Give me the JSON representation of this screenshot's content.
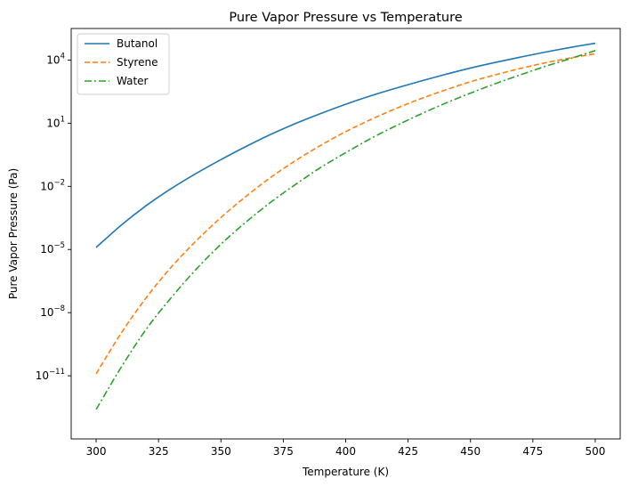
{
  "chart_data": {
    "type": "line",
    "title": "Pure Vapor Pressure vs Temperature",
    "xlabel": "Temperature (K)",
    "ylabel": "Pure Vapor Pressure (Pa)",
    "xlim": [
      290,
      510
    ],
    "ylim_log10": [
      -14,
      5.5
    ],
    "yscale": "log",
    "grid": false,
    "legend_position": "top-left",
    "x_ticks": [
      300,
      325,
      350,
      375,
      400,
      425,
      450,
      475,
      500
    ],
    "x_tick_labels": [
      "300",
      "325",
      "350",
      "375",
      "400",
      "425",
      "450",
      "475",
      "500"
    ],
    "y_ticks_exp": [
      4,
      1,
      -2,
      -5,
      -8,
      -11
    ],
    "y_tick_base": "10",
    "series": [
      {
        "name": "Butanol",
        "color": "#1f77b4",
        "style": "solid",
        "x": [
          300,
          310,
          320,
          330,
          340,
          350,
          360,
          370,
          380,
          390,
          400,
          410,
          420,
          430,
          440,
          450,
          460,
          470,
          480,
          490,
          500
        ],
        "log10_y": [
          -4.9,
          -3.85,
          -2.92,
          -2.11,
          -1.39,
          -0.73,
          -0.11,
          0.47,
          0.99,
          1.46,
          1.9,
          2.3,
          2.66,
          3.0,
          3.32,
          3.62,
          3.89,
          4.14,
          4.38,
          4.6,
          4.8
        ]
      },
      {
        "name": "Styrene",
        "color": "#ff7f0e",
        "style": "dashed",
        "x": [
          300,
          310,
          320,
          330,
          340,
          350,
          360,
          370,
          380,
          390,
          400,
          410,
          420,
          430,
          440,
          450,
          460,
          470,
          480,
          490,
          500
        ],
        "log10_y": [
          -10.9,
          -8.98,
          -7.3,
          -5.85,
          -4.6,
          -3.48,
          -2.48,
          -1.57,
          -0.77,
          -0.05,
          0.6,
          1.17,
          1.69,
          2.16,
          2.58,
          2.97,
          3.3,
          3.6,
          3.87,
          4.1,
          4.3
        ]
      },
      {
        "name": "Water",
        "color": "#2ca02c",
        "style": "dashdot",
        "x": [
          300,
          310,
          320,
          330,
          340,
          350,
          360,
          370,
          380,
          390,
          400,
          410,
          420,
          430,
          440,
          450,
          460,
          470,
          480,
          490,
          500
        ],
        "log10_y": [
          -12.6,
          -10.6,
          -8.8,
          -7.3,
          -5.95,
          -4.75,
          -3.7,
          -2.75,
          -1.9,
          -1.1,
          -0.4,
          0.27,
          0.87,
          1.43,
          1.95,
          2.43,
          2.88,
          3.3,
          3.7,
          4.07,
          4.45
        ]
      }
    ]
  }
}
